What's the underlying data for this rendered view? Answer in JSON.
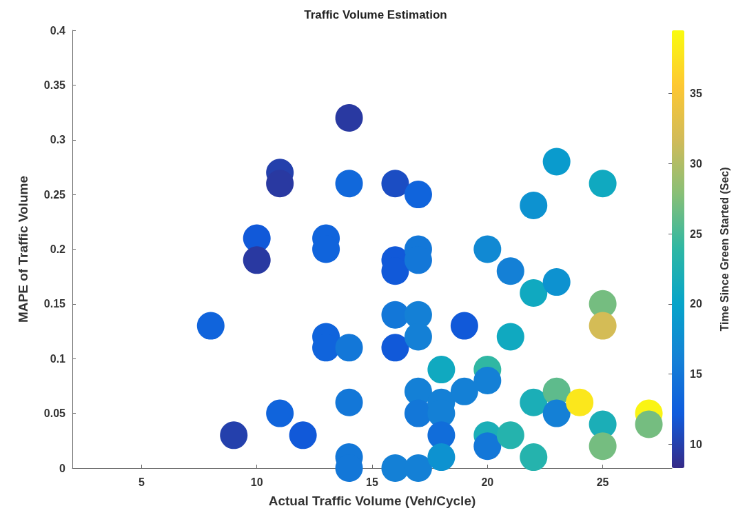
{
  "chart_data": {
    "type": "scatter",
    "title": "Traffic Volume Estimation",
    "xlabel": "Actual Traffic Volume (Veh/Cycle)",
    "ylabel": "MAPE of Traffic Volume",
    "clabel": "Time Since Green Started (Sec)",
    "x": [
      8,
      9,
      10,
      10,
      11,
      11,
      11,
      12,
      13,
      13,
      13,
      13,
      14,
      14,
      14,
      14,
      14,
      14,
      16,
      16,
      16,
      16,
      16,
      16,
      17,
      17,
      17,
      17,
      17,
      17,
      17,
      17,
      18,
      18,
      18,
      18,
      18,
      19,
      19,
      20,
      20,
      20,
      20,
      20,
      21,
      21,
      21,
      22,
      22,
      22,
      22,
      23,
      23,
      23,
      23,
      24,
      25,
      25,
      25,
      25,
      25,
      27,
      27
    ],
    "values": [
      0.13,
      0.03,
      0.21,
      0.19,
      0.27,
      0.26,
      0.05,
      0.03,
      0.21,
      0.2,
      0.12,
      0.11,
      0.32,
      0.26,
      0.11,
      0.06,
      0.01,
      0,
      0.26,
      0.19,
      0.18,
      0.14,
      0.11,
      0,
      0.25,
      0.2,
      0.19,
      0.14,
      0.12,
      0.07,
      0.05,
      0,
      0.09,
      0.06,
      0.05,
      0.03,
      0.01,
      0.13,
      0.07,
      0.2,
      0.09,
      0.08,
      0.03,
      0.02,
      0.18,
      0.12,
      0.03,
      0.24,
      0.16,
      0.06,
      0.01,
      0.28,
      0.17,
      0.07,
      0.05,
      0.06,
      0.26,
      0.15,
      0.13,
      0.04,
      0.02,
      0.05,
      0.04
    ],
    "cvalues": [
      13,
      10,
      12,
      9.5,
      10,
      9.5,
      13,
      12,
      13,
      13,
      13,
      13,
      9.5,
      13.5,
      15,
      15,
      15,
      15,
      11,
      12,
      12,
      15,
      12,
      16,
      13,
      15,
      15,
      16,
      16,
      16,
      15,
      16,
      21,
      16,
      16,
      14,
      18,
      12,
      16,
      17,
      24,
      16,
      22,
      15,
      16,
      21,
      23,
      18,
      21,
      22,
      23,
      19,
      18,
      26,
      16,
      38,
      21,
      27,
      32,
      22,
      27,
      39,
      27
    ],
    "clim": [
      8.3,
      39.5
    ],
    "cticks": [
      10,
      15,
      20,
      25,
      30,
      35
    ],
    "xlim": [
      2,
      28
    ],
    "xticks": [
      5,
      10,
      15,
      20,
      25
    ],
    "ylim": [
      0,
      0.4
    ],
    "yticks": [
      0,
      0.05,
      0.1,
      0.15,
      0.2,
      0.25,
      0.3,
      0.35,
      0.4
    ],
    "marker": "circle",
    "grid": false
  }
}
